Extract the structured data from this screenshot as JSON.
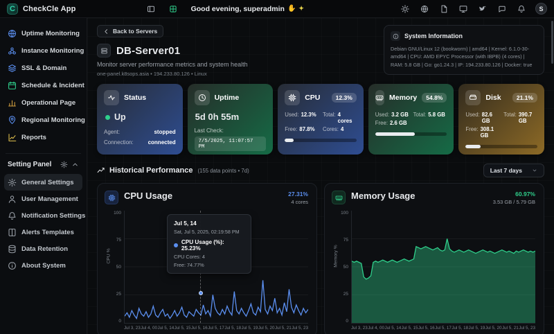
{
  "app": {
    "name": "CheckCle App",
    "logo_letter": "C"
  },
  "icons": {
    "wave": "✋",
    "sparkles": "✦"
  },
  "topbar": {
    "greeting": "Good evening, superadmin",
    "avatar_letter": "S"
  },
  "sidebar": {
    "items": [
      {
        "label": "Uptime Monitoring"
      },
      {
        "label": "Instance Monitoring"
      },
      {
        "label": "SSL & Domain"
      },
      {
        "label": "Schedule & Incident"
      },
      {
        "label": "Operational Page"
      },
      {
        "label": "Regional Monitoring"
      },
      {
        "label": "Reports"
      }
    ],
    "settings_header": "Setting Panel",
    "settings_items": [
      {
        "label": "General Settings"
      },
      {
        "label": "User Management"
      },
      {
        "label": "Notification Settings"
      },
      {
        "label": "Alerts Templates"
      },
      {
        "label": "Data Retention"
      },
      {
        "label": "About System"
      }
    ]
  },
  "page": {
    "back_button": "Back to Servers",
    "title": "DB-Server01",
    "subtitle": "Monitor server performance metrics and system health",
    "meta": "one-panel.k8sops.asia • 194.233.80.126 • Linux",
    "system_info_title": "System Information",
    "system_info_details": "Debian GNU/Linux 12 (bookworm) | amd64 | Kernel: 6.1.0-30-amd64 | CPU: AMD EPYC Processor (with IBPB) (4 cores) | RAM: 5.8 GB | Go: go1.24.3 | IP: 194.233.80.126 | Docker: true"
  },
  "cards": {
    "status": {
      "title": "Status",
      "state": "Up",
      "agent_label": "Agent:",
      "agent_value": "stopped",
      "connection_label": "Connection:",
      "connection_value": "connected"
    },
    "uptime": {
      "title": "Uptime",
      "value": "5d 0h 55m",
      "last_check_label": "Last Check:",
      "last_check_value": "7/5/2025, 11:07:57 PM"
    },
    "cpu": {
      "title": "CPU",
      "badge": "12.3%",
      "used_label": "Used:",
      "used_value": "12.3%",
      "total_label": "Total:",
      "total_value": "4 cores",
      "free_label": "Free:",
      "free_value": "87.8%",
      "cores_label": "Cores:",
      "cores_value": "4",
      "percent": 12.3
    },
    "memory": {
      "title": "Memory",
      "badge": "54.8%",
      "used_label": "Used:",
      "used_value": "3.2 GB",
      "total_label": "Total:",
      "total_value": "5.8 GB",
      "free_label": "Free:",
      "free_value": "2.6 GB",
      "percent": 54.8
    },
    "disk": {
      "title": "Disk",
      "badge": "21.1%",
      "used_label": "Used:",
      "used_value": "82.6 GB",
      "total_label": "Total:",
      "total_value": "390.7 GB",
      "free_label": "Free:",
      "free_value": "308.1 GB",
      "percent": 21.1
    }
  },
  "history": {
    "title": "Historical Performance",
    "meta": "(155 data points • 7d)",
    "range_label": "Last 7 days"
  },
  "charts": {
    "cpu": {
      "title": "CPU Usage",
      "current": "27.31%",
      "sub": "4 cores",
      "tooltip": {
        "title": "Jul 5, 14",
        "subtitle": "Sat, Jul 5, 2025, 02:19:58 PM",
        "row_main": "CPU Usage (%): 25.23%",
        "row2": "CPU Cores: 4",
        "row3": "Free: 74.77%"
      }
    },
    "memory": {
      "title": "Memory Usage",
      "current": "60.97%",
      "sub": "3.53 GB / 5.79 GB"
    }
  },
  "chart_data": [
    {
      "id": "cpu",
      "type": "line",
      "title": "CPU Usage",
      "ylabel": "CPU %",
      "ylim": [
        0,
        100
      ],
      "yticks": [
        100,
        75,
        50,
        25,
        0
      ],
      "x_ticks": [
        "Jul 3, 23",
        "Jul 4, 00",
        "Jul 5, 14",
        "Jul 5, 15",
        "Jul 5, 16",
        "Jul 5, 17",
        "Jul 5, 18",
        "Jul 5, 19",
        "Jul 5, 20",
        "Jul 5, 21",
        "Jul 5, 23"
      ],
      "color": "#5b8ff0",
      "values": [
        6,
        9,
        5,
        11,
        7,
        4,
        13,
        8,
        6,
        10,
        5,
        8,
        15,
        7,
        5,
        9,
        12,
        6,
        8,
        4,
        7,
        11,
        6,
        9,
        14,
        7,
        5,
        10,
        8,
        6,
        12,
        9,
        7,
        16,
        8,
        11,
        6,
        25,
        13,
        9,
        7,
        12,
        8,
        15,
        10,
        7,
        28,
        11,
        8,
        13,
        9,
        6,
        11,
        17,
        9,
        7,
        14,
        10,
        38,
        12,
        8,
        15,
        11,
        22,
        9,
        13,
        7,
        18,
        10,
        30,
        14,
        9,
        16,
        11,
        7,
        13,
        9,
        12
      ]
    },
    {
      "id": "memory",
      "type": "area",
      "title": "Memory Usage",
      "ylabel": "Memory %",
      "ylim": [
        0,
        100
      ],
      "yticks": [
        100,
        75,
        50,
        25,
        0
      ],
      "x_ticks": [
        "Jul 3, 23",
        "Jul 4, 00",
        "Jul 5, 14",
        "Jul 5, 15",
        "Jul 5, 16",
        "Jul 5, 17",
        "Jul 5, 18",
        "Jul 5, 19",
        "Jul 5, 20",
        "Jul 5, 21",
        "Jul 5, 23"
      ],
      "color": "#2fd08c",
      "fill": "rgba(47,208,140,0.38)",
      "values": [
        55,
        54,
        55,
        54,
        53,
        41,
        39,
        40,
        42,
        54,
        55,
        54,
        55,
        56,
        55,
        54,
        55,
        56,
        55,
        54,
        55,
        56,
        57,
        56,
        55,
        56,
        57,
        68,
        67,
        66,
        67,
        68,
        67,
        66,
        65,
        66,
        67,
        65,
        64,
        65,
        75,
        66,
        64,
        63,
        64,
        65,
        64,
        63,
        64,
        65,
        64,
        63,
        62,
        63,
        64,
        65,
        64,
        63,
        64,
        63,
        62,
        63,
        64,
        65,
        64,
        63,
        64,
        63,
        62,
        64,
        63,
        64,
        65,
        64,
        63,
        64,
        63,
        64
      ]
    }
  ],
  "colors": {
    "accent_blue": "#5b8ff0",
    "accent_green": "#2fd08c",
    "accent_amber": "#d9a441"
  }
}
